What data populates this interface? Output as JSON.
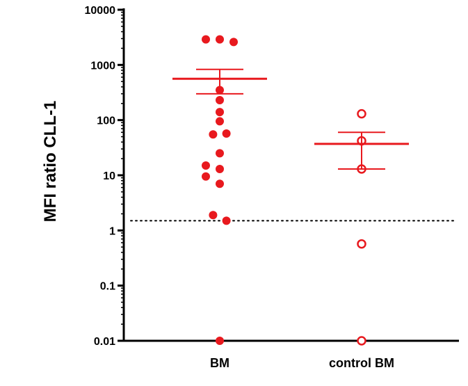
{
  "chart_data": {
    "type": "scatter",
    "ylabel": "MFI ratio CLL-1",
    "yscale": "log",
    "ylim": [
      0.01,
      10000
    ],
    "yticks": [
      {
        "value": 10000,
        "label": "10000"
      },
      {
        "value": 1000,
        "label": "1000"
      },
      {
        "value": 100,
        "label": "100"
      },
      {
        "value": 10,
        "label": "10"
      },
      {
        "value": 1,
        "label": "1"
      },
      {
        "value": 0.1,
        "label": "0.1"
      },
      {
        "value": 0.01,
        "label": "0.01"
      }
    ],
    "categories": [
      "BM",
      "control BM"
    ],
    "reference_line": {
      "value": 1.5,
      "style": "dotted"
    },
    "grid": false,
    "color": "#e8191e",
    "series": [
      {
        "category": "BM",
        "marker": "filled-circle",
        "points": [
          {
            "offset": -0.25,
            "y": 2900
          },
          {
            "offset": 0.0,
            "y": 2900
          },
          {
            "offset": 0.25,
            "y": 2600
          },
          {
            "offset": 0.0,
            "y": 350
          },
          {
            "offset": 0.0,
            "y": 230
          },
          {
            "offset": 0.0,
            "y": 140
          },
          {
            "offset": 0.0,
            "y": 95
          },
          {
            "offset": -0.12,
            "y": 55
          },
          {
            "offset": 0.12,
            "y": 57
          },
          {
            "offset": 0.0,
            "y": 25
          },
          {
            "offset": -0.25,
            "y": 15
          },
          {
            "offset": 0.0,
            "y": 13
          },
          {
            "offset": -0.25,
            "y": 9.5
          },
          {
            "offset": 0.0,
            "y": 7
          },
          {
            "offset": -0.12,
            "y": 1.9
          },
          {
            "offset": 0.12,
            "y": 1.5
          },
          {
            "offset": 0.0,
            "y": 0.01
          }
        ],
        "mean": 560,
        "sem_upper": 830,
        "sem_lower": 300
      },
      {
        "category": "control BM",
        "marker": "open-circle",
        "points": [
          {
            "offset": 0.0,
            "y": 130
          },
          {
            "offset": 0.0,
            "y": 42
          },
          {
            "offset": 0.0,
            "y": 13
          },
          {
            "offset": 0.0,
            "y": 0.57
          },
          {
            "offset": 0.0,
            "y": 0.01
          }
        ],
        "mean": 37,
        "sem_upper": 60,
        "sem_lower": 13
      }
    ]
  }
}
